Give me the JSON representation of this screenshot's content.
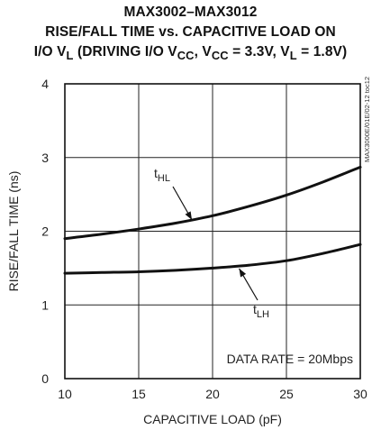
{
  "title": {
    "line1": "MAX3002–MAX3012",
    "line2": "RISE/FALL TIME vs. CAPACITIVE LOAD ON",
    "line3_pre": "I/O V",
    "line3_sub1": "L",
    "line3_mid1": " (DRIVING I/O V",
    "line3_sub2": "CC",
    "line3_mid2": ", V",
    "line3_sub3": "CC",
    "line3_mid3": " = 3.3V, V",
    "line3_sub4": "L",
    "line3_post": " = 1.8V)"
  },
  "watermark": "MAX3000E/01E/02-12 toc12",
  "chart_data": {
    "type": "line",
    "xlabel": "CAPACITIVE LOAD (pF)",
    "ylabel": "RISE/FALL TIME (ns)",
    "xlim": [
      10,
      30
    ],
    "ylim": [
      0,
      4
    ],
    "x_ticks": [
      10,
      15,
      20,
      25,
      30
    ],
    "y_ticks": [
      0,
      1,
      2,
      3,
      4
    ],
    "grid": true,
    "series": [
      {
        "name": "tHL",
        "label_main": "t",
        "label_sub": "HL",
        "x": [
          10,
          12.5,
          15,
          17.5,
          20,
          22.5,
          25,
          27.5,
          30
        ],
        "y": [
          1.9,
          1.96,
          2.03,
          2.11,
          2.21,
          2.34,
          2.49,
          2.67,
          2.87
        ]
      },
      {
        "name": "tLH",
        "label_main": "t",
        "label_sub": "LH",
        "x": [
          10,
          12.5,
          15,
          17.5,
          20,
          22.5,
          25,
          27.5,
          30
        ],
        "y": [
          1.43,
          1.44,
          1.45,
          1.47,
          1.5,
          1.54,
          1.6,
          1.7,
          1.82
        ]
      }
    ],
    "annotation": "DATA RATE = 20Mbps"
  }
}
